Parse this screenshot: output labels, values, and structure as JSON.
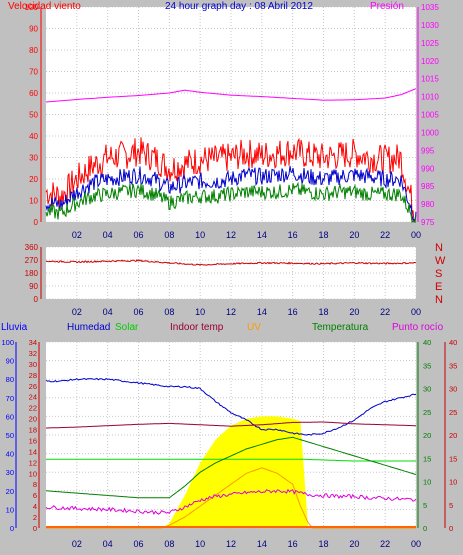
{
  "chart_data": [
    {
      "type": "line",
      "title": "24 hour graph day : 08 Abril 2012",
      "x_ticks": [
        "02",
        "04",
        "06",
        "08",
        "10",
        "12",
        "14",
        "16",
        "18",
        "20",
        "22",
        "00"
      ],
      "left_axis": {
        "label": "Velocidad viento",
        "range": [
          0,
          100
        ],
        "ticks": [
          0,
          10,
          20,
          30,
          40,
          50,
          60,
          70,
          80,
          90,
          100
        ]
      },
      "right_axis": {
        "label": "Presión",
        "range": [
          975,
          1035
        ],
        "ticks": [
          975,
          980,
          985,
          990,
          995,
          1000,
          1005,
          1010,
          1015,
          1020,
          1025,
          1030,
          1035
        ]
      },
      "series": [
        {
          "name": "Presión",
          "axis": "right",
          "color": "#ff00ff",
          "x": [
            0,
            2,
            4,
            6,
            8,
            9,
            10,
            12,
            14,
            16,
            18,
            20,
            22,
            23,
            24
          ],
          "values": [
            1008.5,
            1009.2,
            1009.8,
            1010.3,
            1011.0,
            1011.8,
            1011.2,
            1010.4,
            1010.0,
            1009.5,
            1009.0,
            1009.1,
            1009.6,
            1010.5,
            1012.2
          ]
        },
        {
          "name": "",
          "axis": "left",
          "color": "#ff0000",
          "x": [
            0,
            1,
            2,
            3,
            4,
            5,
            6,
            7,
            8,
            9,
            10,
            11,
            12,
            13,
            14,
            15,
            16,
            17,
            18,
            19,
            20,
            21,
            22,
            23,
            24
          ],
          "values": [
            14,
            12,
            20,
            26,
            30,
            31,
            33,
            30,
            25,
            27,
            29,
            29,
            30,
            32,
            31,
            32,
            33,
            31,
            30,
            31,
            32,
            30,
            29,
            30,
            2
          ]
        },
        {
          "name": "",
          "axis": "left",
          "color": "#0000cc",
          "x": [
            0,
            1,
            2,
            3,
            4,
            5,
            6,
            7,
            8,
            9,
            10,
            11,
            12,
            13,
            14,
            15,
            16,
            17,
            18,
            19,
            20,
            21,
            22,
            23,
            24
          ],
          "values": [
            9,
            8,
            14,
            18,
            20,
            21,
            22,
            20,
            16,
            18,
            19,
            19,
            20,
            22,
            21,
            22,
            23,
            21,
            20,
            21,
            22,
            21,
            20,
            20,
            1
          ]
        },
        {
          "name": "",
          "axis": "left",
          "color": "#008000",
          "x": [
            0,
            1,
            2,
            3,
            4,
            5,
            6,
            7,
            8,
            9,
            10,
            11,
            12,
            13,
            14,
            15,
            16,
            17,
            18,
            19,
            20,
            21,
            22,
            23,
            24
          ],
          "values": [
            5,
            4,
            9,
            12,
            13,
            14,
            15,
            13,
            9,
            11,
            12,
            12,
            13,
            14,
            14,
            14,
            15,
            14,
            13,
            14,
            14,
            13,
            13,
            13,
            0
          ]
        }
      ]
    },
    {
      "type": "line",
      "x_ticks": [
        "02",
        "04",
        "06",
        "08",
        "10",
        "12",
        "14",
        "16",
        "18",
        "20",
        "22",
        "00"
      ],
      "left_axis": {
        "range": [
          0,
          360
        ],
        "ticks": [
          0,
          90,
          180,
          270,
          360
        ]
      },
      "right_labels": [
        "N",
        "W",
        "S",
        "E",
        "N"
      ],
      "series": [
        {
          "name": "",
          "color": "#cc0000",
          "x": [
            0,
            2,
            4,
            6,
            8,
            10,
            12,
            14,
            16,
            18,
            20,
            22,
            24
          ],
          "values": [
            262,
            256,
            262,
            266,
            250,
            236,
            244,
            250,
            248,
            244,
            250,
            246,
            250
          ]
        }
      ]
    },
    {
      "type": "area",
      "x_ticks": [
        "02",
        "04",
        "06",
        "08",
        "10",
        "12",
        "14",
        "16",
        "18",
        "20",
        "22",
        "00"
      ],
      "legend": [
        "Lluvia",
        "Humedad",
        "Solar",
        "Indoor temp",
        "UV",
        "Temperatura",
        "Punto rocío"
      ],
      "axes": [
        {
          "label": "Lluvia",
          "range": [
            0,
            100
          ],
          "ticks": [
            0,
            10,
            20,
            30,
            40,
            50,
            60,
            70,
            80,
            90,
            100
          ],
          "color": "#0000ff"
        },
        {
          "label": "UV",
          "range": [
            0,
            34
          ],
          "ticks": [
            0,
            2,
            4,
            6,
            8,
            10,
            12,
            14,
            16,
            18,
            20,
            22,
            24,
            26,
            28,
            30,
            32,
            34
          ],
          "color": "#cc0000"
        },
        {
          "label": "Temperatura",
          "range": [
            0,
            40
          ],
          "ticks": [
            0,
            5,
            10,
            15,
            20,
            25,
            30,
            35,
            40
          ],
          "color": "#008000"
        },
        {
          "label": "Punto rocío",
          "range": [
            0,
            40
          ],
          "ticks": [
            0,
            5,
            10,
            15,
            20,
            25,
            30,
            35,
            40
          ],
          "color": "#cc0000"
        }
      ],
      "series": [
        {
          "name": "Humedad",
          "axis": "Lluvia",
          "color": "#0000cc",
          "x": [
            0,
            1,
            2,
            3,
            4,
            5,
            6,
            7,
            8,
            9,
            10,
            11,
            12,
            13,
            14,
            15,
            16,
            17,
            18,
            19,
            20,
            21,
            22,
            23,
            24
          ],
          "values": [
            79,
            79,
            80,
            80,
            80,
            79,
            78,
            77,
            76,
            76,
            75,
            68,
            62,
            58,
            53,
            53,
            51,
            50,
            51,
            54,
            58,
            64,
            68,
            70,
            72
          ]
        },
        {
          "name": "Solar",
          "axis": "Lluvia",
          "color": "#00dd00",
          "x": [
            0,
            4,
            8,
            9,
            16,
            16.5,
            20,
            24
          ],
          "values": [
            37,
            37,
            37,
            37,
            37,
            37,
            36,
            36
          ]
        },
        {
          "name": "Indoor temp",
          "axis": "Temperatura",
          "color": "#990033",
          "x": [
            0,
            2,
            4,
            6,
            8,
            10,
            12,
            14,
            16,
            18,
            20,
            22,
            24
          ],
          "values": [
            21.5,
            21.7,
            22.0,
            22.3,
            22.5,
            22.2,
            21.9,
            22.2,
            22.7,
            22.8,
            22.4,
            22.2,
            22.0
          ]
        },
        {
          "name": "UV",
          "axis": "UV",
          "color": "#ff9900",
          "x": [
            0,
            7.5,
            8,
            9,
            10,
            11,
            12,
            13,
            14,
            15,
            16,
            16.5,
            17,
            17.3,
            24
          ],
          "values": [
            0,
            0,
            0.5,
            2,
            4,
            6,
            8,
            10,
            11,
            10,
            8,
            4,
            1,
            0,
            0
          ]
        },
        {
          "name": "Temperatura",
          "axis": "Temperatura",
          "color": "#008000",
          "x": [
            0,
            2,
            4,
            6,
            7,
            8,
            9,
            10,
            11,
            12,
            13,
            14,
            15,
            16,
            17,
            18,
            19,
            20,
            21,
            22,
            23,
            24
          ],
          "values": [
            8,
            7.5,
            7,
            6.5,
            6.5,
            6.5,
            9,
            12,
            14,
            15.5,
            17,
            18,
            19,
            19.5,
            18.5,
            17.5,
            16.5,
            15.5,
            14.5,
            13.5,
            12.5,
            11.5
          ]
        },
        {
          "name": "Punto rocío",
          "axis": "Punto rocío",
          "color": "#dd00dd",
          "x": [
            0,
            2,
            4,
            6,
            7,
            8,
            9,
            10,
            11,
            12,
            13,
            14,
            15,
            16,
            17,
            18,
            19,
            20,
            21,
            22,
            23,
            24
          ],
          "values": [
            4.5,
            4.2,
            4.0,
            3.6,
            3.4,
            3.3,
            4.5,
            6,
            6.8,
            7.2,
            7.6,
            7.8,
            8,
            7.8,
            7.2,
            7,
            6.8,
            6.8,
            6.5,
            6.4,
            6.2,
            6.1
          ]
        },
        {
          "name": "Solar",
          "axis": "Temperatura",
          "color": "#ffff00",
          "fill": true,
          "x": [
            0,
            7.5,
            8,
            9,
            10,
            11,
            12,
            13,
            14,
            15,
            16,
            16.5,
            17,
            24
          ],
          "values": [
            0,
            0,
            1,
            7,
            14,
            19,
            22,
            23.5,
            24,
            24,
            23.5,
            23,
            0,
            0
          ]
        }
      ]
    }
  ]
}
